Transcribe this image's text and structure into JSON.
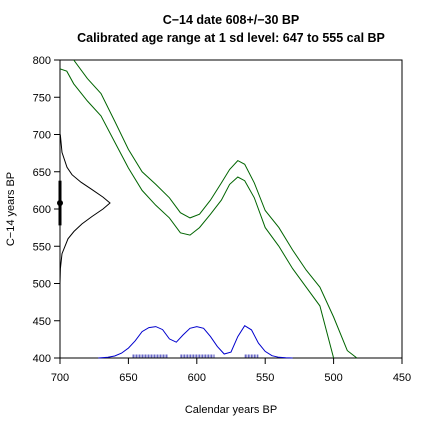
{
  "chart_data": {
    "type": "line",
    "title": "C−14 date 608+/−30 BP",
    "subtitle": "Calibrated age range at 1 sd level: 647 to 555 cal BP",
    "xlabel": "Calendar years BP",
    "ylabel": "C−14 years BP",
    "xlim": [
      700,
      450
    ],
    "ylim": [
      400,
      800
    ],
    "xticks": [
      700,
      650,
      600,
      550,
      500,
      450
    ],
    "yticks": [
      400,
      450,
      500,
      550,
      600,
      650,
      700,
      750,
      800
    ],
    "grid": false,
    "legend": "none",
    "colors": {
      "calibration": "#006400",
      "probability": "#0000cd",
      "range_markers": "#6a6ac8",
      "c14_density": "#000000"
    },
    "calibration_upper": {
      "x": [
        700,
        690,
        680,
        670,
        660,
        650,
        640,
        630,
        620,
        612,
        605,
        598,
        590,
        582,
        576,
        570,
        565,
        558,
        550,
        540,
        530,
        520,
        510,
        500,
        490,
        483
      ],
      "y": [
        815,
        800,
        775,
        755,
        718,
        680,
        650,
        633,
        615,
        595,
        588,
        593,
        612,
        635,
        653,
        665,
        660,
        635,
        598,
        575,
        545,
        518,
        495,
        455,
        410,
        400
      ]
    },
    "calibration_lower": {
      "x": [
        700,
        695,
        690,
        680,
        670,
        660,
        650,
        640,
        630,
        620,
        612,
        605,
        598,
        590,
        582,
        576,
        570,
        565,
        558,
        550,
        540,
        530,
        520,
        510,
        500
      ],
      "y": [
        788,
        785,
        768,
        745,
        725,
        690,
        655,
        625,
        605,
        588,
        568,
        565,
        575,
        593,
        612,
        633,
        643,
        638,
        615,
        575,
        550,
        520,
        495,
        470,
        400
      ]
    },
    "c14_density": {
      "y": [
        500,
        520,
        540,
        560,
        570,
        580,
        590,
        600,
        608,
        616,
        626,
        636,
        646,
        656,
        676,
        700
      ],
      "density": [
        0.001,
        0.007,
        0.04,
        0.16,
        0.28,
        0.44,
        0.64,
        0.86,
        1.0,
        0.86,
        0.64,
        0.42,
        0.24,
        0.14,
        0.04,
        0.005
      ]
    },
    "c14_measurement": {
      "mean": 608,
      "sd": 30
    },
    "calibrated_probability": {
      "x": [
        672,
        665,
        660,
        655,
        650,
        645,
        640,
        635,
        630,
        625,
        620,
        615,
        610,
        605,
        600,
        595,
        590,
        585,
        580,
        575,
        570,
        565,
        560,
        555,
        550,
        545,
        540,
        535,
        530
      ],
      "p": [
        0.0,
        0.02,
        0.06,
        0.15,
        0.3,
        0.52,
        0.8,
        0.92,
        0.95,
        0.86,
        0.58,
        0.48,
        0.7,
        0.9,
        0.95,
        0.9,
        0.65,
        0.35,
        0.12,
        0.18,
        0.65,
        0.98,
        0.85,
        0.45,
        0.2,
        0.07,
        0.02,
        0.005,
        0.0
      ]
    },
    "calibrated_ranges_1sd": [
      [
        647,
        621
      ],
      [
        612,
        587
      ],
      [
        565,
        555
      ]
    ]
  }
}
